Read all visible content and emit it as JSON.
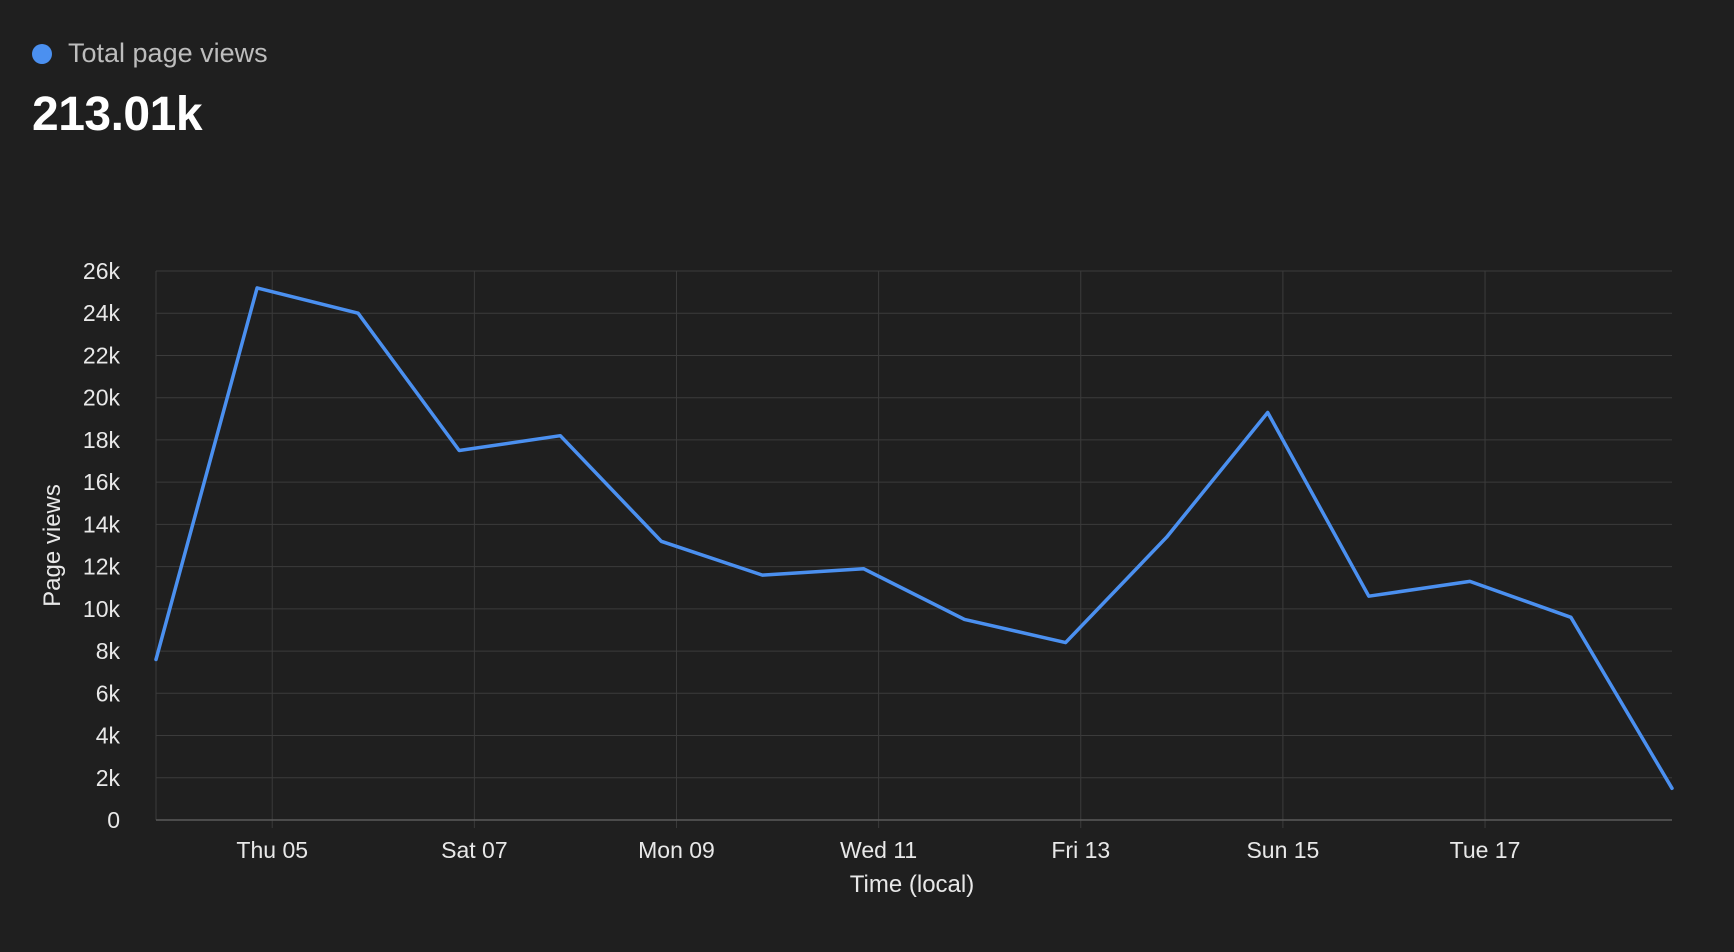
{
  "header": {
    "legend_label": "Total page views",
    "total_value": "213.01k"
  },
  "colors": {
    "background": "#1f1f1f",
    "series": "#4b90f0",
    "grid": "#3b3b3b",
    "axis": "#5a5a5a"
  },
  "chart_data": {
    "type": "line",
    "title": "",
    "xlabel": "Time (local)",
    "ylabel": "Page views",
    "ylim": [
      0,
      26000
    ],
    "grid": true,
    "y_ticks": [
      0,
      2000,
      4000,
      6000,
      8000,
      10000,
      12000,
      14000,
      16000,
      18000,
      20000,
      22000,
      24000,
      26000
    ],
    "y_tick_labels": [
      "0",
      "2k",
      "4k",
      "6k",
      "8k",
      "10k",
      "12k",
      "14k",
      "16k",
      "18k",
      "20k",
      "22k",
      "24k",
      "26k"
    ],
    "x_tick_labels": [
      "Thu 05",
      "Sat 07",
      "Mon 09",
      "Wed 11",
      "Fri 13",
      "Sun 15",
      "Tue 17"
    ],
    "series": [
      {
        "name": "Total page views",
        "values": [
          7600,
          25200,
          24000,
          17500,
          18200,
          13200,
          11600,
          11900,
          9500,
          8400,
          13400,
          19300,
          10600,
          11300,
          9600,
          1500
        ]
      }
    ]
  }
}
